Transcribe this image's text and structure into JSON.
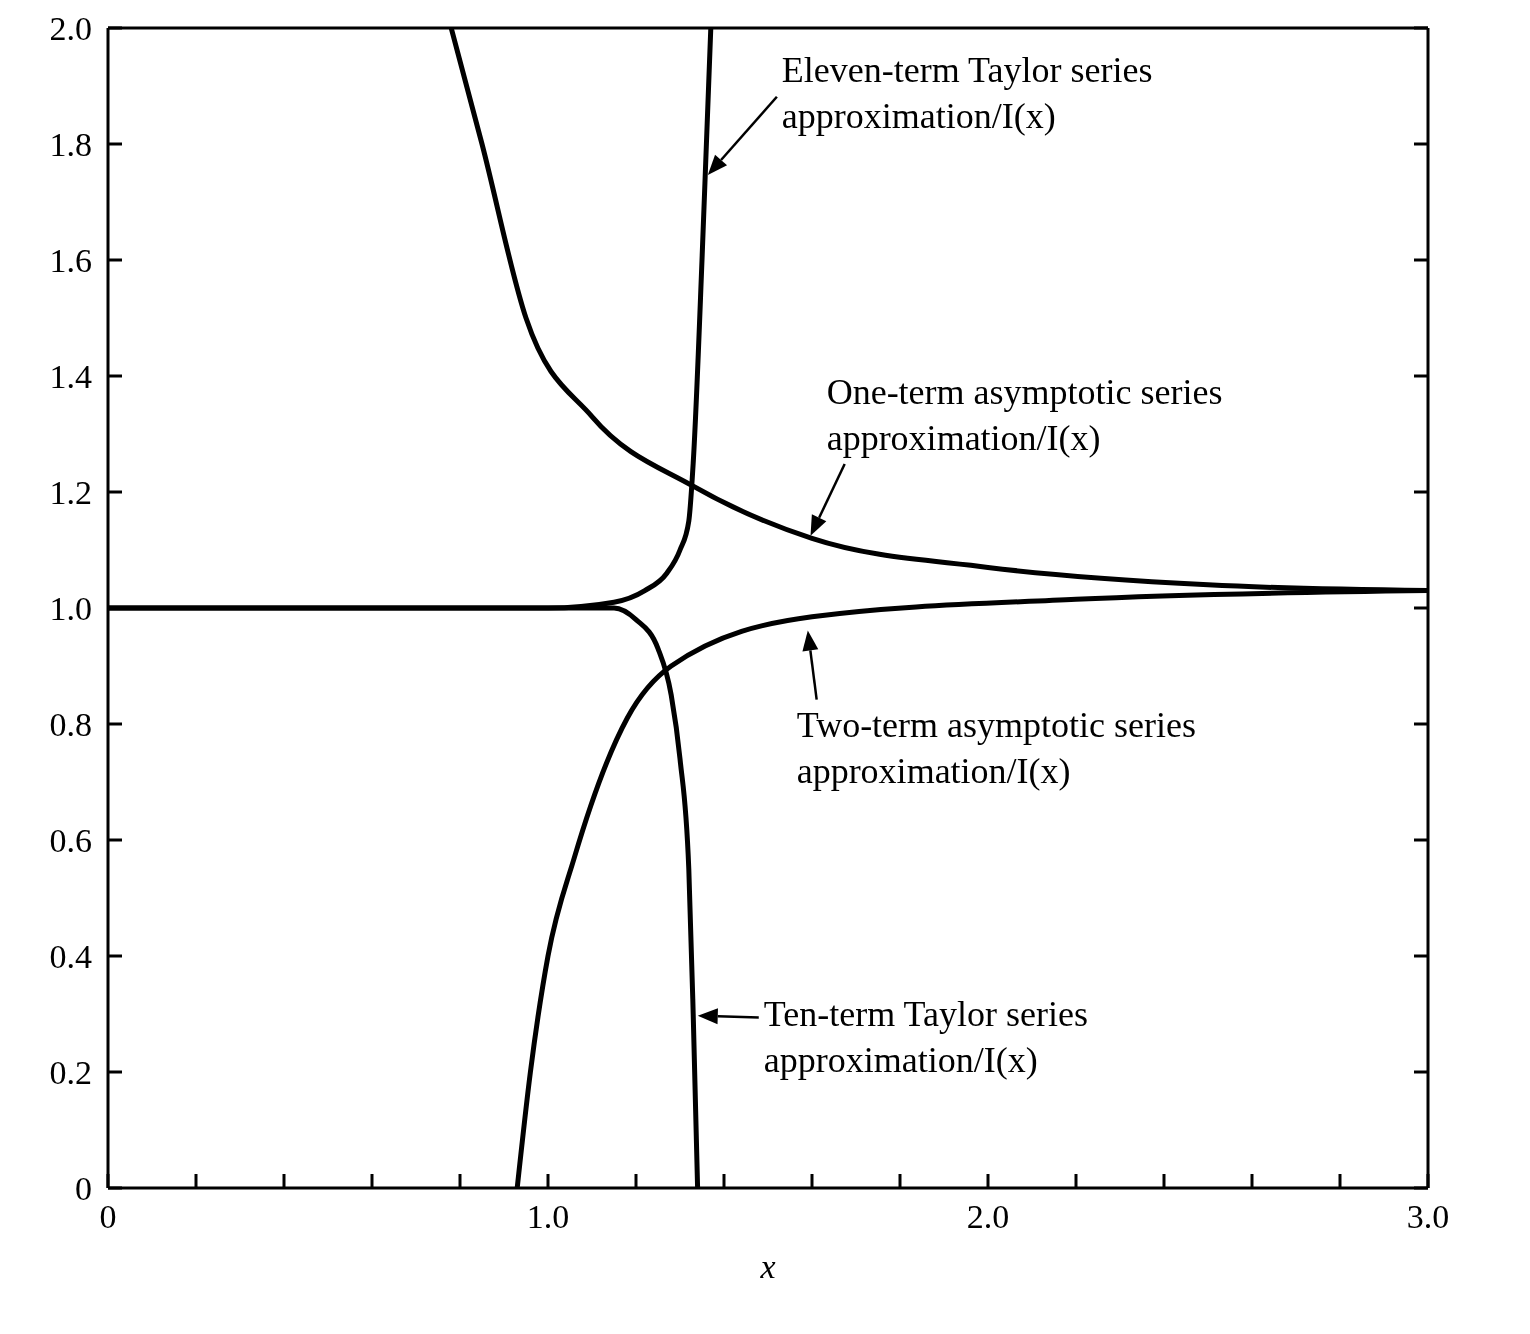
{
  "chart_data": {
    "type": "line",
    "xlabel": "x",
    "marker": "none",
    "line_style": "solid",
    "xlim": [
      0,
      3
    ],
    "ylim": [
      0,
      2
    ],
    "xticks": [
      0,
      {
        "value": 0.2,
        "label": null
      },
      {
        "value": 0.4,
        "label": null
      },
      {
        "value": 0.6,
        "label": null
      },
      {
        "value": 0.8,
        "label": null
      },
      {
        "value": 1,
        "label": "1.0"
      },
      {
        "value": 1.2,
        "label": null
      },
      {
        "value": 1.4,
        "label": null
      },
      {
        "value": 1.6,
        "label": null
      },
      {
        "value": 1.8,
        "label": null
      },
      {
        "value": 2,
        "label": "2.0"
      },
      {
        "value": 2.2,
        "label": null
      },
      {
        "value": 2.4,
        "label": null
      },
      {
        "value": 2.6,
        "label": null
      },
      {
        "value": 2.8,
        "label": null
      },
      {
        "value": 3,
        "label": "3.0"
      }
    ],
    "yticks": [
      0,
      0.2,
      0.4,
      0.6,
      0.8,
      {
        "value": 1,
        "label": "1.0"
      },
      1.2,
      1.4,
      1.6,
      1.8,
      {
        "value": 2,
        "label": "2.0"
      }
    ],
    "series": [
      {
        "color": "#000000",
        "x": [
          0,
          0.5,
          1.0,
          1.15,
          1.2,
          1.25,
          1.28,
          1.3,
          1.32,
          1.33,
          1.34
        ],
        "values": [
          1,
          1,
          1,
          1,
          0.98,
          0.93,
          0.85,
          0.74,
          0.55,
          0.3,
          0
        ]
      },
      {
        "color": "#000000",
        "x": [
          0,
          0.5,
          1.0,
          1.15,
          1.22,
          1.27,
          1.3,
          1.32,
          1.33,
          1.35,
          1.36,
          1.37
        ],
        "values": [
          1,
          1,
          1,
          1.01,
          1.03,
          1.06,
          1.1,
          1.15,
          1.25,
          1.6,
          1.8,
          2
        ]
      },
      {
        "color": "#000000",
        "x": [
          0.78,
          0.85,
          0.95,
          1.1,
          1.33,
          1.6,
          2.0,
          2.5,
          3.0
        ],
        "values": [
          2,
          1.8,
          1.5,
          1.33,
          1.21,
          1.12,
          1.07,
          1.04,
          1.03
        ]
      },
      {
        "color": "#000000",
        "x": [
          0.93,
          0.96,
          1.0,
          1.06,
          1.18,
          1.28,
          1.6,
          2.2,
          3.0
        ],
        "values": [
          0,
          0.2,
          0.4,
          0.57,
          0.81,
          0.9,
          0.985,
          1.015,
          1.03
        ]
      }
    ],
    "annotations": [
      {
        "text": "Eleven-term Taylor series approximation/I(x)",
        "x": 1.36,
        "y": 1.75
      },
      {
        "text": "One-term asymptotic series approximation/I(x)",
        "x": 1.6,
        "y": 1.12
      },
      {
        "text": "Two-term asymptotic series approximation/I(x)",
        "x": 1.6,
        "y": 0.985
      },
      {
        "text": "Ten-term Taylor series approximation/I(x)",
        "x": 1.33,
        "y": 0.3
      }
    ]
  }
}
